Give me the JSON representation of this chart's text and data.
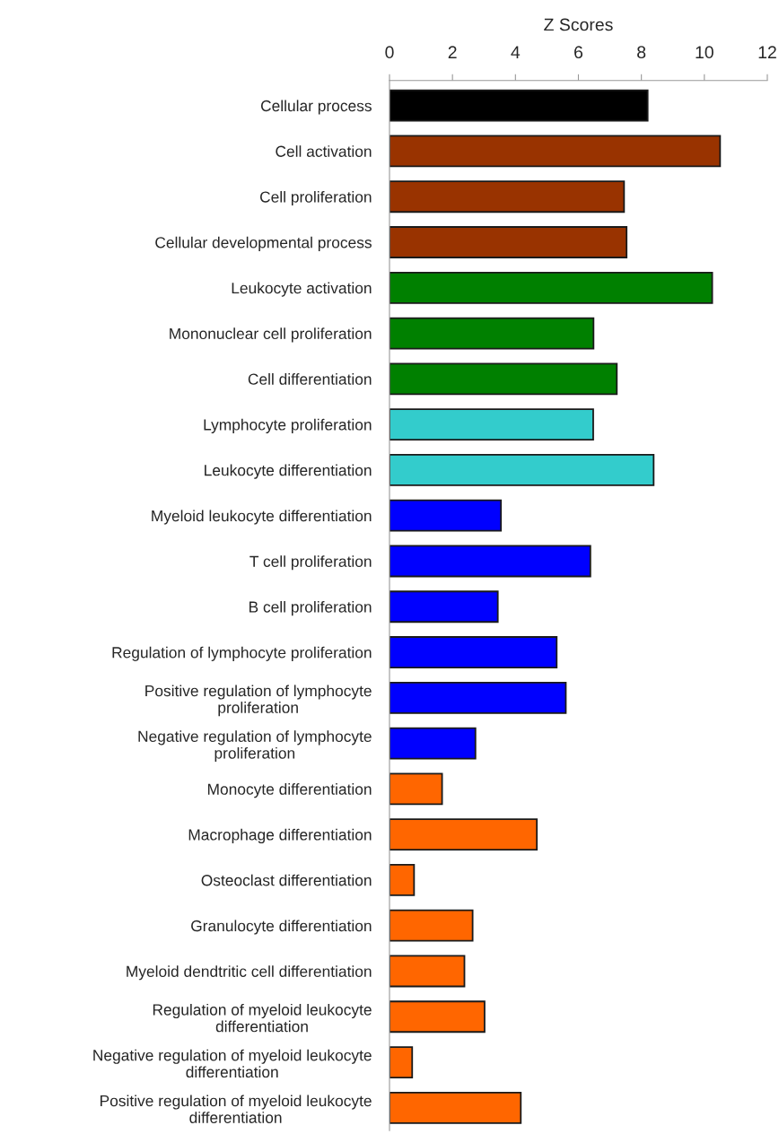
{
  "chart_data": {
    "type": "bar",
    "orientation": "horizontal",
    "xlabel": "Z Scores",
    "categories": [
      "Cellular process",
      "Cell activation",
      "Cell proliferation",
      "Cellular developmental process",
      "Leukocyte activation",
      "Mononuclear cell proliferation",
      "Cell differentiation",
      "Lymphocyte proliferation",
      "Leukocyte differentiation",
      "Myeloid leukocyte differentiation",
      "T cell proliferation",
      "B cell proliferation",
      "Regulation of lymphocyte proliferation",
      "Positive regulation of lymphocyte\nproliferation",
      "Negative regulation of lymphocyte\nproliferation",
      "Monocyte differentiation",
      "Macrophage differentiation",
      "Osteoclast differentiation",
      "Granulocyte differentiation",
      "Myeloid dendtritic cell differentiation",
      "Regulation of myeloid leukocyte\ndifferentiation",
      "Negative regulation of myeloid leukocyte\ndifferentiation",
      "Positive regulation of myeloid leukocyte\ndifferentiation"
    ],
    "values": [
      8.2,
      10.5,
      7.45,
      7.53,
      10.25,
      6.48,
      7.22,
      6.47,
      8.39,
      3.54,
      6.38,
      3.44,
      5.31,
      5.6,
      2.73,
      1.67,
      4.68,
      0.78,
      2.64,
      2.38,
      3.02,
      0.72,
      4.17
    ],
    "colors": [
      "#000000",
      "#993300",
      "#993300",
      "#993300",
      "#008000",
      "#008000",
      "#008000",
      "#33cccc",
      "#33cccc",
      "#0000ff",
      "#0000ff",
      "#0000ff",
      "#0000ff",
      "#0000ff",
      "#0000ff",
      "#ff6600",
      "#ff6600",
      "#ff6600",
      "#ff6600",
      "#ff6600",
      "#ff6600",
      "#ff6600",
      "#ff6600"
    ],
    "xlim": [
      0,
      12
    ],
    "xticks": [
      0,
      2,
      4,
      6,
      8,
      10,
      12
    ],
    "grid": false,
    "legend": false
  }
}
